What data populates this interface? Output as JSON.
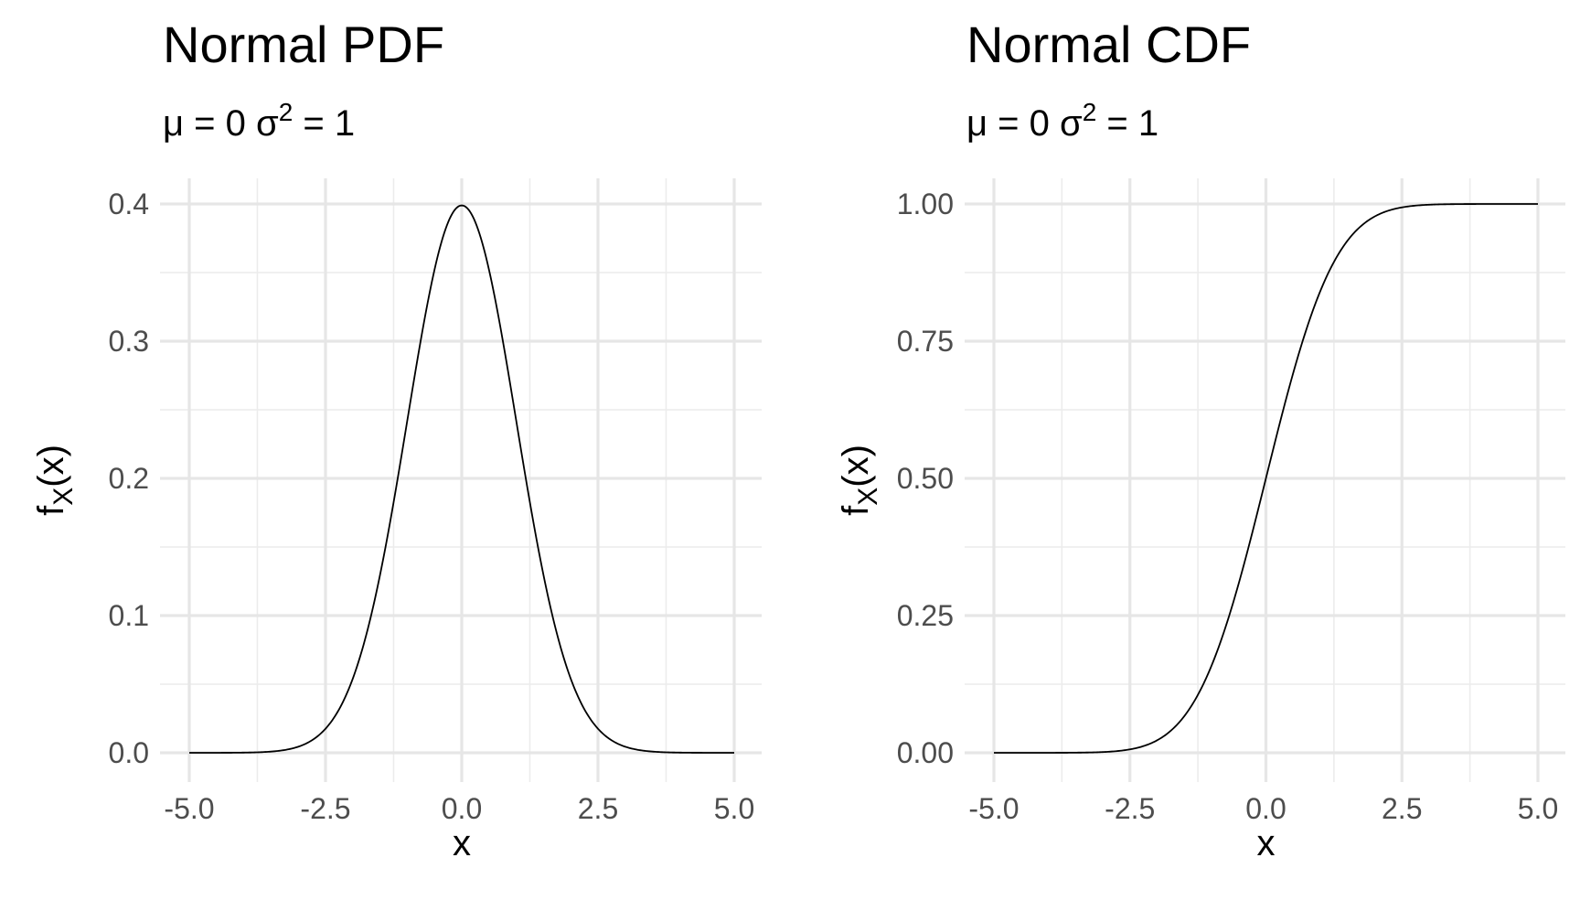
{
  "chart_data": [
    {
      "type": "line",
      "title": "Normal PDF",
      "subtitle": "μ = 0 σ² = 1",
      "subtitle_parts": {
        "mu": "μ = 0 ",
        "sigma": "σ",
        "sup": "2",
        "rest": " = 1"
      },
      "xlabel": "x",
      "ylabel": "f_X(x)",
      "ylabel_parts": {
        "f": "f",
        "sub": "X",
        "rest": "(x)"
      },
      "xlim": [
        -5,
        5
      ],
      "ylim": [
        0,
        0.4
      ],
      "x_ticks": [
        -5,
        -2.5,
        0,
        2.5,
        5
      ],
      "x_tick_labels": [
        "-5.0",
        "-2.5",
        "0.0",
        "2.5",
        "5.0"
      ],
      "y_ticks": [
        0,
        0.1,
        0.2,
        0.3,
        0.4
      ],
      "y_tick_labels": [
        "0.0",
        "0.1",
        "0.2",
        "0.3",
        "0.4"
      ],
      "x_minor": [
        -3.75,
        -1.25,
        1.25,
        3.75
      ],
      "y_minor": [
        0.05,
        0.15,
        0.25,
        0.35
      ],
      "grid": true,
      "function": "normal_pdf",
      "mean": 0,
      "variance": 1,
      "series": [
        {
          "x": [
            -5,
            -4.5,
            -4,
            -3.5,
            -3,
            -2.5,
            -2,
            -1.5,
            -1,
            -0.5,
            0,
            0.5,
            1,
            1.5,
            2,
            2.5,
            3,
            3.5,
            4,
            4.5,
            5
          ],
          "values": [
            1.5e-06,
            1.6e-05,
            0.000134,
            0.000873,
            0.00443,
            0.0175,
            0.054,
            0.1295,
            0.242,
            0.3521,
            0.3989,
            0.3521,
            0.242,
            0.1295,
            0.054,
            0.0175,
            0.00443,
            0.000873,
            0.000134,
            1.6e-05,
            1.5e-06
          ]
        }
      ]
    },
    {
      "type": "line",
      "title": "Normal CDF",
      "subtitle": "μ = 0 σ² = 1",
      "subtitle_parts": {
        "mu": "μ = 0 ",
        "sigma": "σ",
        "sup": "2",
        "rest": " = 1"
      },
      "xlabel": "x",
      "ylabel": "f_X(x)",
      "ylabel_parts": {
        "f": "f",
        "sub": "X",
        "rest": "(x)"
      },
      "xlim": [
        -5,
        5
      ],
      "ylim": [
        0,
        1
      ],
      "x_ticks": [
        -5,
        -2.5,
        0,
        2.5,
        5
      ],
      "x_tick_labels": [
        "-5.0",
        "-2.5",
        "0.0",
        "2.5",
        "5.0"
      ],
      "y_ticks": [
        0,
        0.25,
        0.5,
        0.75,
        1
      ],
      "y_tick_labels": [
        "0.00",
        "0.25",
        "0.50",
        "0.75",
        "1.00"
      ],
      "x_minor": [
        -3.75,
        -1.25,
        1.25,
        3.75
      ],
      "y_minor": [
        0.125,
        0.375,
        0.625,
        0.875
      ],
      "grid": true,
      "function": "normal_cdf",
      "mean": 0,
      "variance": 1,
      "series": [
        {
          "x": [
            -5,
            -4.5,
            -4,
            -3.5,
            -3,
            -2.5,
            -2,
            -1.5,
            -1,
            -0.5,
            0,
            0.5,
            1,
            1.5,
            2,
            2.5,
            3,
            3.5,
            4,
            4.5,
            5
          ],
          "values": [
            3e-07,
            3.4e-06,
            3.17e-05,
            0.000233,
            0.00135,
            0.00621,
            0.0228,
            0.0668,
            0.1587,
            0.3085,
            0.5,
            0.6915,
            0.8413,
            0.9332,
            0.9772,
            0.9938,
            0.99865,
            0.99977,
            0.99997,
            0.999997,
            0.9999997
          ]
        }
      ]
    }
  ]
}
